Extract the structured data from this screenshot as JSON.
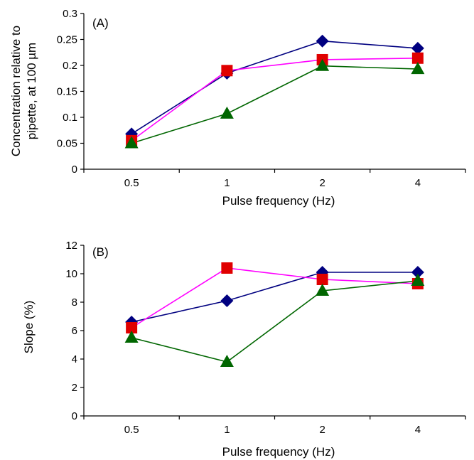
{
  "chart_data": [
    {
      "type": "line",
      "panel_label": "(A)",
      "categories": [
        "0.5",
        "1",
        "2",
        "4"
      ],
      "xlabel": "Pulse frequency (Hz)",
      "ylabel_lines": [
        "Concentration relative to",
        "pipette, at 100 µm"
      ],
      "ylim": [
        0,
        0.3
      ],
      "yticks": [
        0,
        0.05,
        0.1,
        0.15,
        0.2,
        0.25,
        0.3
      ],
      "ytick_labels": [
        "0",
        "0.05",
        "0.1",
        "0.15",
        "0.2",
        "0.25",
        "0.3"
      ],
      "grid": false,
      "legend": "none",
      "series": [
        {
          "values": [
            0.068,
            0.185,
            0.247,
            0.233
          ],
          "line_color": "#000080",
          "marker": "diamond",
          "marker_color": "#000080"
        },
        {
          "values": [
            0.055,
            0.19,
            0.211,
            0.214
          ],
          "line_color": "#ff00ff",
          "marker": "square",
          "marker_color": "#e00000"
        },
        {
          "values": [
            0.05,
            0.107,
            0.199,
            0.193
          ],
          "line_color": "#006600",
          "marker": "triangle",
          "marker_color": "#006600"
        }
      ]
    },
    {
      "type": "line",
      "panel_label": "(B)",
      "categories": [
        "0.5",
        "1",
        "2",
        "4"
      ],
      "xlabel": "Pulse frequency (Hz)",
      "ylabel_lines": [
        "Slope (%)"
      ],
      "ylim": [
        0,
        12
      ],
      "yticks": [
        0,
        2,
        4,
        6,
        8,
        10,
        12
      ],
      "ytick_labels": [
        "0",
        "2",
        "4",
        "6",
        "8",
        "10",
        "12"
      ],
      "grid": false,
      "legend": "none",
      "series": [
        {
          "values": [
            6.6,
            8.1,
            10.1,
            10.1
          ],
          "line_color": "#000080",
          "marker": "diamond",
          "marker_color": "#000080"
        },
        {
          "values": [
            6.2,
            10.4,
            9.6,
            9.3
          ],
          "line_color": "#ff00ff",
          "marker": "square",
          "marker_color": "#e00000"
        },
        {
          "values": [
            5.5,
            3.8,
            8.8,
            9.5
          ],
          "line_color": "#006600",
          "marker": "triangle",
          "marker_color": "#006600"
        }
      ]
    }
  ]
}
